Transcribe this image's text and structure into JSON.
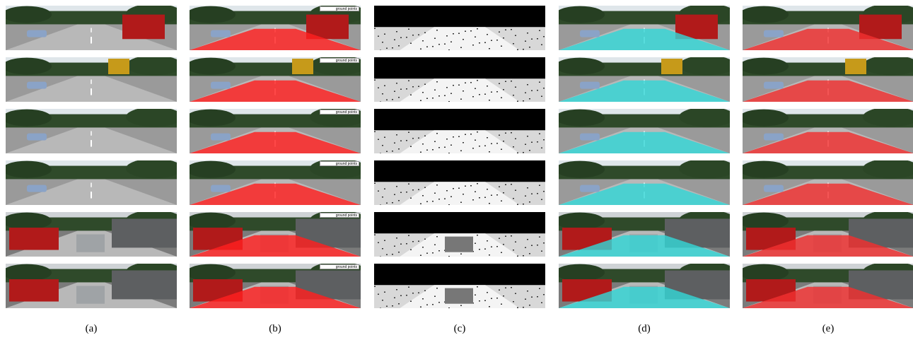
{
  "captions": [
    "(a)",
    "(b)",
    "(c)",
    "(d)",
    "(e)"
  ],
  "legend_label": "ground points",
  "overlay_colors": {
    "ground_points": "#ff2020",
    "depth_map": "#ffffff",
    "prediction": "#33d6d6",
    "ground_truth": "#f03030"
  }
}
